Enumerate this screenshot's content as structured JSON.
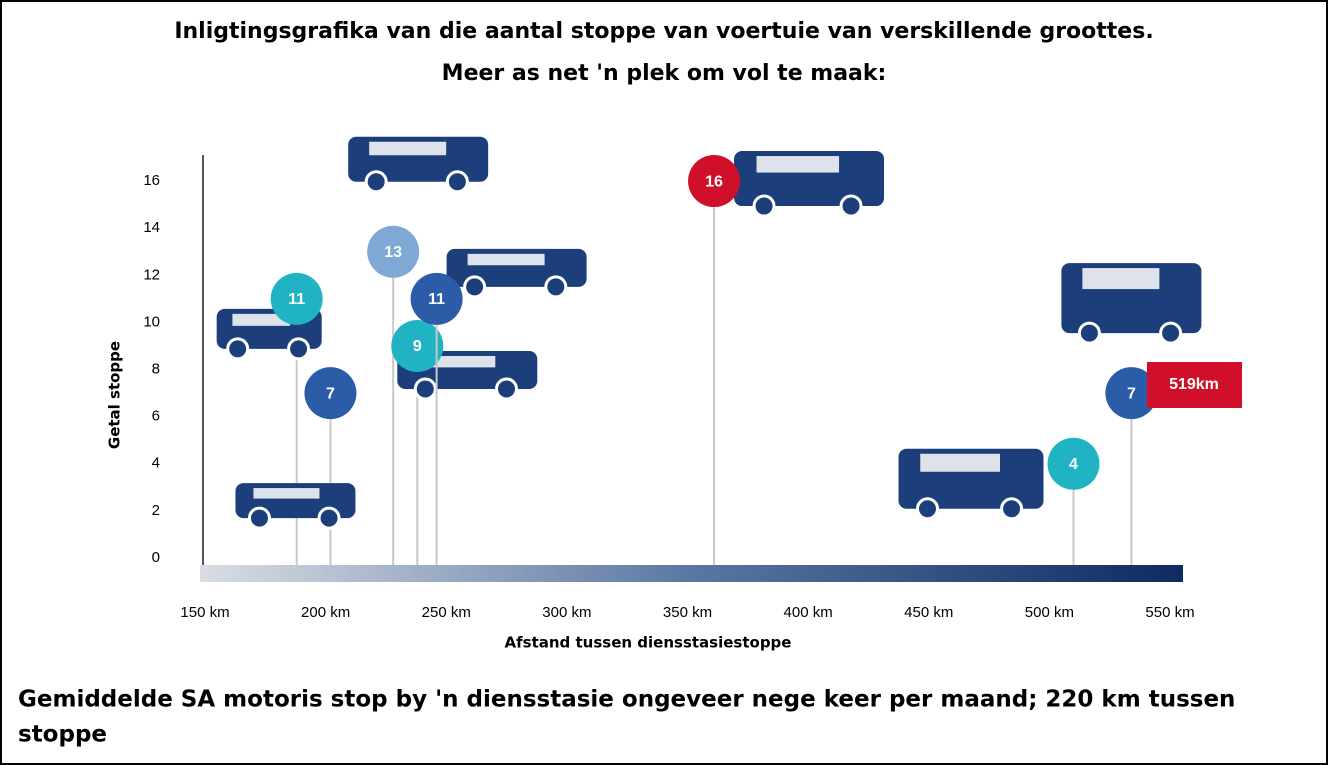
{
  "chart_data": {
    "type": "scatter",
    "title": "Inligtingsgrafika van die aantal stoppe van voertuie van verskillende groottes.",
    "subtitle": "Meer as net 'n plek om vol te maak:",
    "x_label": "Afstand tussen diensstasiestoppe",
    "y_label": "Getal stoppe",
    "series": [
      {
        "x": [
          188,
          202,
          228,
          238,
          246,
          361,
          510,
          534
        ],
        "values": [
          11,
          7,
          13,
          9,
          11,
          16,
          4,
          7
        ],
        "colors": [
          "#1fb3c4",
          "#2a5ca8",
          "#7fa9d4",
          "#1fb3c4",
          "#2a5ca8",
          "#d0102a",
          "#1fb3c4",
          "#2a5ca8"
        ]
      }
    ],
    "xlim": [
      150,
      550
    ],
    "xticks": [
      {
        "value": 150,
        "label": "150 km"
      },
      {
        "value": 200,
        "label": "200 km"
      },
      {
        "value": 250,
        "label": "250 km"
      },
      {
        "value": 300,
        "label": "300 km"
      },
      {
        "value": 350,
        "label": "350 km"
      },
      {
        "value": 400,
        "label": "400 km"
      },
      {
        "value": 450,
        "label": "450 km"
      },
      {
        "value": 500,
        "label": "500 km"
      },
      {
        "value": 550,
        "label": "550 km"
      }
    ],
    "ylim": [
      0,
      17
    ],
    "yticks": [
      0,
      2,
      4,
      6,
      8,
      10,
      12,
      14,
      16
    ],
    "annotation": "519km",
    "footnote_lines": [
      "Gemiddelde SA motoris stop by 'n diensstasie ongeveer nege keer per maand; 220 km tussen",
      "stoppe"
    ]
  }
}
